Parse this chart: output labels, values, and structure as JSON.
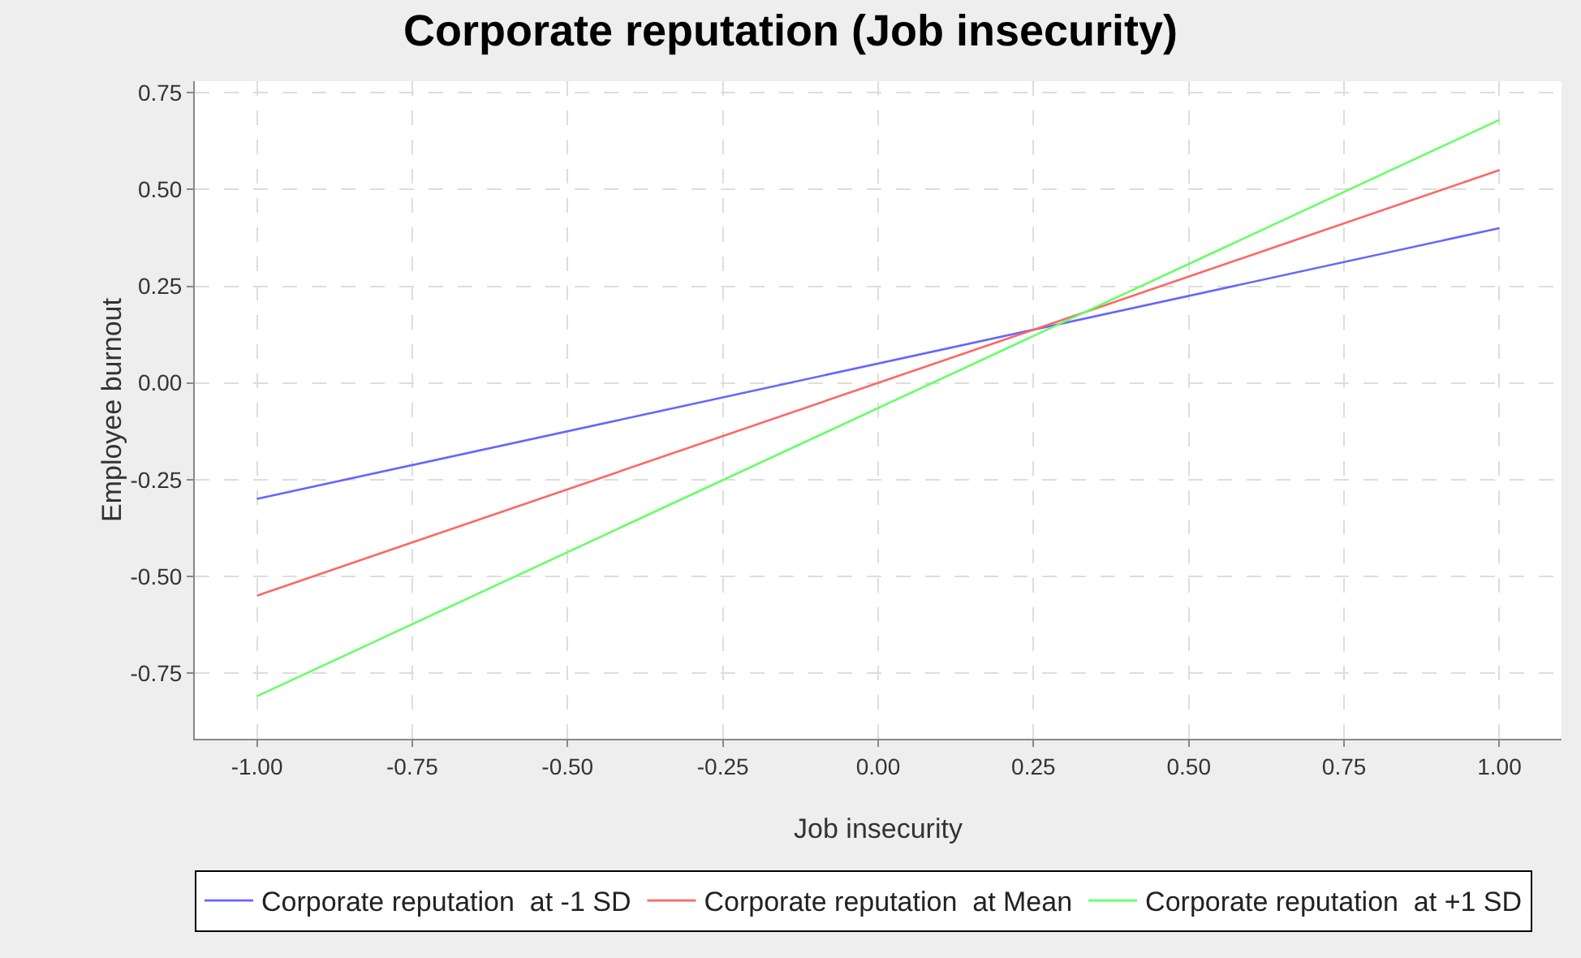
{
  "chart_data": {
    "type": "line",
    "title": "Corporate reputation (Job insecurity)",
    "xlabel": "Job insecurity",
    "ylabel": "Employee burnout",
    "x": [
      -1,
      1
    ],
    "series": [
      {
        "name": "Corporate reputation  at -1 SD",
        "color": "#6666ff",
        "values": [
          -0.3,
          0.4
        ]
      },
      {
        "name": "Corporate reputation  at Mean",
        "color": "#ff6666",
        "values": [
          -0.55,
          0.55
        ]
      },
      {
        "name": "Corporate reputation  at +1 SD",
        "color": "#66ff66",
        "values": [
          -0.81,
          0.68
        ]
      }
    ],
    "xlim": [
      -1.1,
      1.1
    ],
    "xticks": [
      {
        "value": -1,
        "label": "-1.00"
      },
      {
        "value": -0.75,
        "label": "-0.75"
      },
      {
        "value": -0.5,
        "label": "-0.50"
      },
      {
        "value": -0.25,
        "label": "-0.25"
      },
      {
        "value": 0,
        "label": "0.00"
      },
      {
        "value": 0.25,
        "label": "0.25"
      },
      {
        "value": 0.5,
        "label": "0.50"
      },
      {
        "value": 0.75,
        "label": "0.75"
      },
      {
        "value": 1,
        "label": "1.00"
      }
    ],
    "ylim": [
      -0.92,
      0.78
    ],
    "yticks": [
      {
        "value": -0.75,
        "label": "-0.75"
      },
      {
        "value": -0.5,
        "label": "-0.50"
      },
      {
        "value": -0.25,
        "label": "-0.25"
      },
      {
        "value": 0,
        "label": "0.00"
      },
      {
        "value": 0.25,
        "label": "0.25"
      },
      {
        "value": 0.5,
        "label": "0.50"
      },
      {
        "value": 0.75,
        "label": "0.75"
      }
    ],
    "grid": true,
    "legend": "bottom",
    "marker": "none",
    "line_style": "solid"
  }
}
